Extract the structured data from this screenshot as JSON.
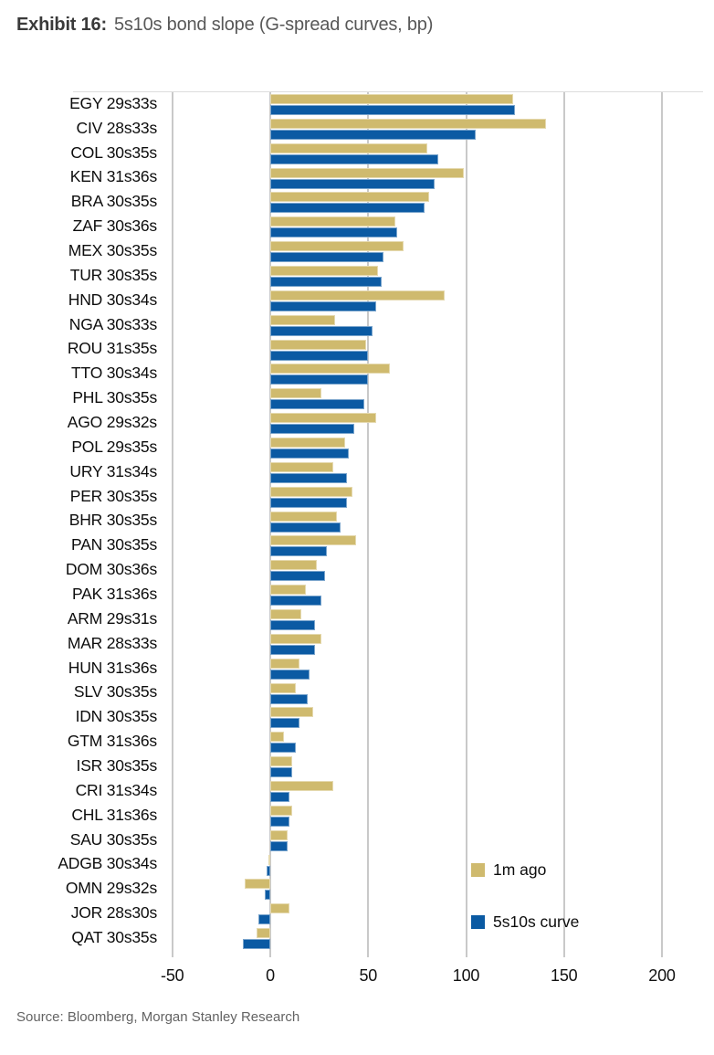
{
  "header": {
    "exhibit_label": "Exhibit 16:",
    "title": "5s10s bond slope (G-spread curves, bp)"
  },
  "legend": {
    "items": [
      {
        "label": "1m ago",
        "color": "#cfba6e"
      },
      {
        "label": "5s10s curve",
        "color": "#0b5aa3"
      }
    ]
  },
  "footer": {
    "source": "Source: Bloomberg, Morgan Stanley Research"
  },
  "chart_data": {
    "type": "bar",
    "orientation": "horizontal",
    "title": "5s10s bond slope (G-spread curves, bp)",
    "xlabel": "bp",
    "ylabel": "",
    "grid": "vertical",
    "legend_position": "bottom-right",
    "x_ticks": [
      -50,
      0,
      50,
      100,
      150,
      200
    ],
    "xlim": [
      -101,
      221
    ],
    "categories": [
      "EGY 29s33s",
      "CIV 28s33s",
      "COL 30s35s",
      "KEN 31s36s",
      "BRA 30s35s",
      "ZAF 30s36s",
      "MEX 30s35s",
      "TUR 30s35s",
      "HND 30s34s",
      "NGA 30s33s",
      "ROU 31s35s",
      "TTO 30s34s",
      "PHL 30s35s",
      "AGO 29s32s",
      "POL 29s35s",
      "URY 31s34s",
      "PER 30s35s",
      "BHR 30s35s",
      "PAN 30s35s",
      "DOM 30s36s",
      "PAK 31s36s",
      "ARM 29s31s",
      "MAR 28s33s",
      "HUN 31s36s",
      "SLV 30s35s",
      "IDN 30s35s",
      "GTM 31s36s",
      "ISR 30s35s",
      "CRI 31s34s",
      "CHL 31s36s",
      "SAU 30s35s",
      "ADGB 30s34s",
      "OMN 29s32s",
      "JOR 28s30s",
      "QAT 30s35s"
    ],
    "series": [
      {
        "name": "1m ago",
        "color": "#cfba6e",
        "values": [
          124,
          141,
          80,
          99,
          81,
          64,
          68,
          55,
          89,
          33,
          49,
          61,
          26,
          54,
          38,
          32,
          42,
          34,
          44,
          24,
          18,
          16,
          26,
          15,
          13,
          22,
          7,
          11,
          32,
          11,
          9,
          -1,
          -13,
          10,
          -7
        ]
      },
      {
        "name": "5s10s curve",
        "color": "#0b5aa3",
        "values": [
          125,
          105,
          86,
          84,
          79,
          65,
          58,
          57,
          54,
          52,
          50,
          50,
          48,
          43,
          40,
          39,
          39,
          36,
          29,
          28,
          26,
          23,
          23,
          20,
          19,
          15,
          13,
          11,
          10,
          10,
          9,
          -2,
          -3,
          -6,
          -14
        ]
      }
    ]
  }
}
